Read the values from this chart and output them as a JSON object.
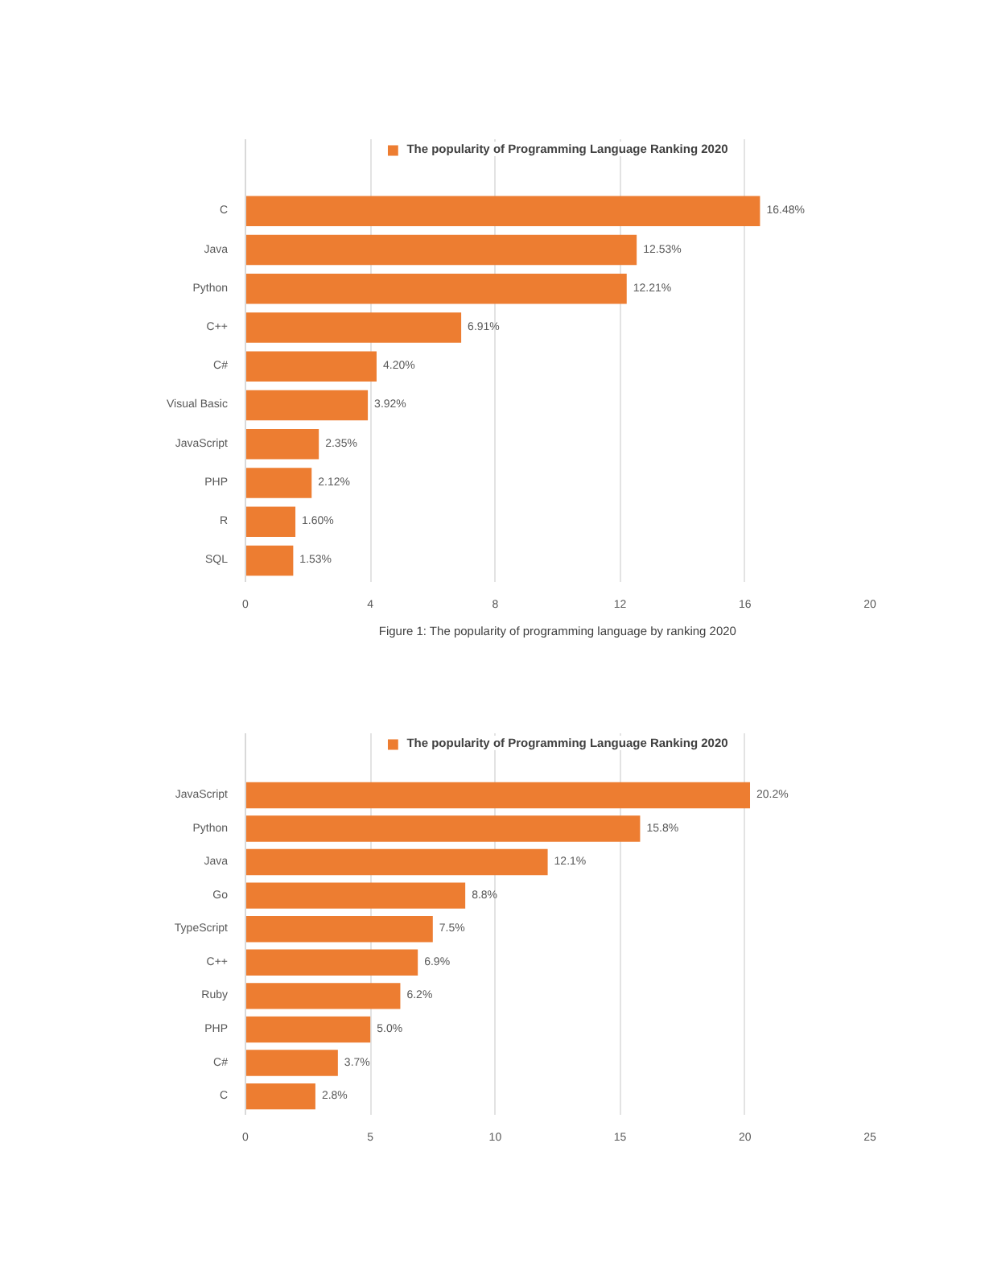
{
  "chart_data": [
    {
      "type": "bar",
      "orientation": "horizontal",
      "categories": [
        "C",
        "Java",
        "Python",
        "C++",
        "C#",
        "Visual Basic",
        "JavaScript",
        "PHP",
        "R",
        "SQL"
      ],
      "series": [
        {
          "name": "The popularity of Programming Language Ranking 2020",
          "color": "#ed7d31",
          "values": [
            16.48,
            12.53,
            12.21,
            6.91,
            4.2,
            3.92,
            2.35,
            2.12,
            1.6,
            1.53
          ],
          "value_labels": [
            "16.48%",
            "12.53%",
            "12.21%",
            "6.91%",
            "4.20%",
            "3.92%",
            "2.35%",
            "2.12%",
            "1.60%",
            "1.53%"
          ]
        }
      ],
      "xlim": [
        0,
        20
      ],
      "xticks": [
        0,
        4,
        8,
        12,
        16,
        20
      ],
      "grid": "x",
      "legend": "top",
      "annotations": [
        "Figure 1: The popularity of programming language by ranking 2020"
      ]
    },
    {
      "type": "bar",
      "orientation": "horizontal",
      "categories": [
        "JavaScript",
        "Python",
        "Java",
        "Go",
        "TypeScript",
        "C++",
        "Ruby",
        "PHP",
        "C#",
        "C"
      ],
      "series": [
        {
          "name": "The popularity of Programming Language Ranking 2020",
          "color": "#ed7d31",
          "values": [
            20.2,
            15.8,
            12.1,
            8.8,
            7.5,
            6.9,
            6.2,
            5.0,
            3.7,
            2.8
          ],
          "value_labels": [
            "20.2%",
            "15.8%",
            "12.1%",
            "8.8%",
            "7.5%",
            "6.9%",
            "6.2%",
            "5.0%",
            "3.7%",
            "2.8%"
          ]
        }
      ],
      "xlim": [
        0,
        25
      ],
      "xticks": [
        0,
        5,
        10,
        15,
        20,
        25
      ],
      "grid": "x",
      "legend": "top"
    }
  ]
}
